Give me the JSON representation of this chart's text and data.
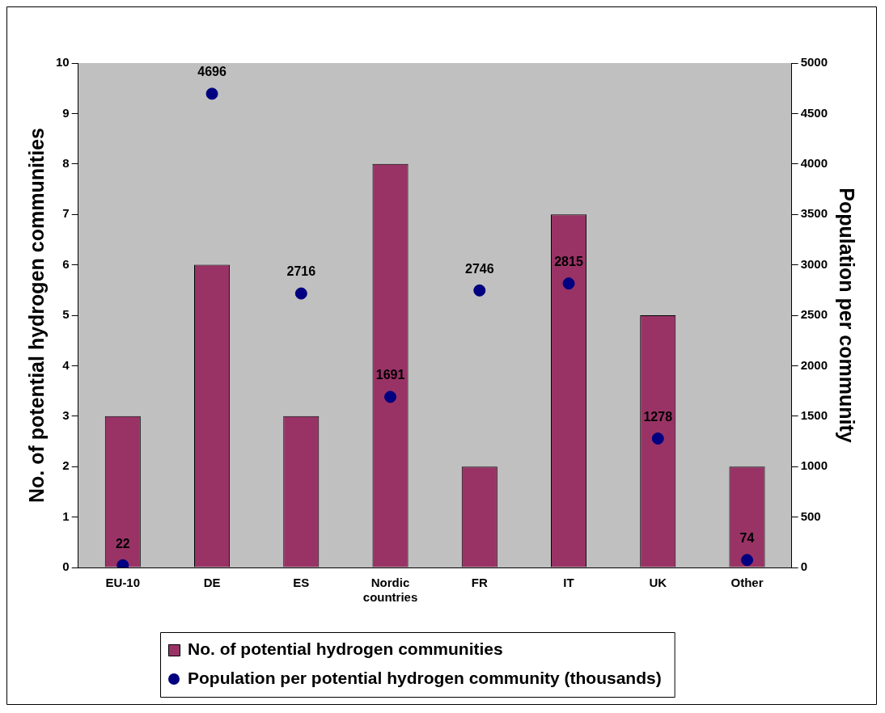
{
  "chart_data": {
    "type": "bar",
    "categories": [
      "EU-10",
      "DE",
      "ES",
      "Nordic countries",
      "FR",
      "IT",
      "UK",
      "Other"
    ],
    "series": [
      {
        "name": "No. of potential hydrogen communities",
        "color": "#993366",
        "values": [
          3,
          6,
          3,
          8,
          2,
          7,
          5,
          2
        ]
      },
      {
        "name": "Population per potential hydrogen community (thousands)",
        "type": "scatter",
        "axis": "y2",
        "color": "#000080",
        "values": [
          22,
          4696,
          2716,
          1691,
          2746,
          2815,
          1278,
          74
        ],
        "value_labels": [
          "22",
          "4696",
          "2716",
          "1691",
          "2746",
          "2815",
          "1278",
          "74"
        ]
      }
    ],
    "ylabel": "No. of potential hydrogen communities",
    "y2label": "Population per community",
    "ylim": [
      0,
      10
    ],
    "yticks": [
      0,
      1,
      2,
      3,
      4,
      5,
      6,
      7,
      8,
      9,
      10
    ],
    "y2lim": [
      0,
      5000
    ],
    "y2ticks": [
      0,
      500,
      1000,
      1500,
      2000,
      2500,
      3000,
      3500,
      4000,
      4500,
      5000
    ],
    "grid": false,
    "legend": "bottom",
    "marker": "circle"
  }
}
